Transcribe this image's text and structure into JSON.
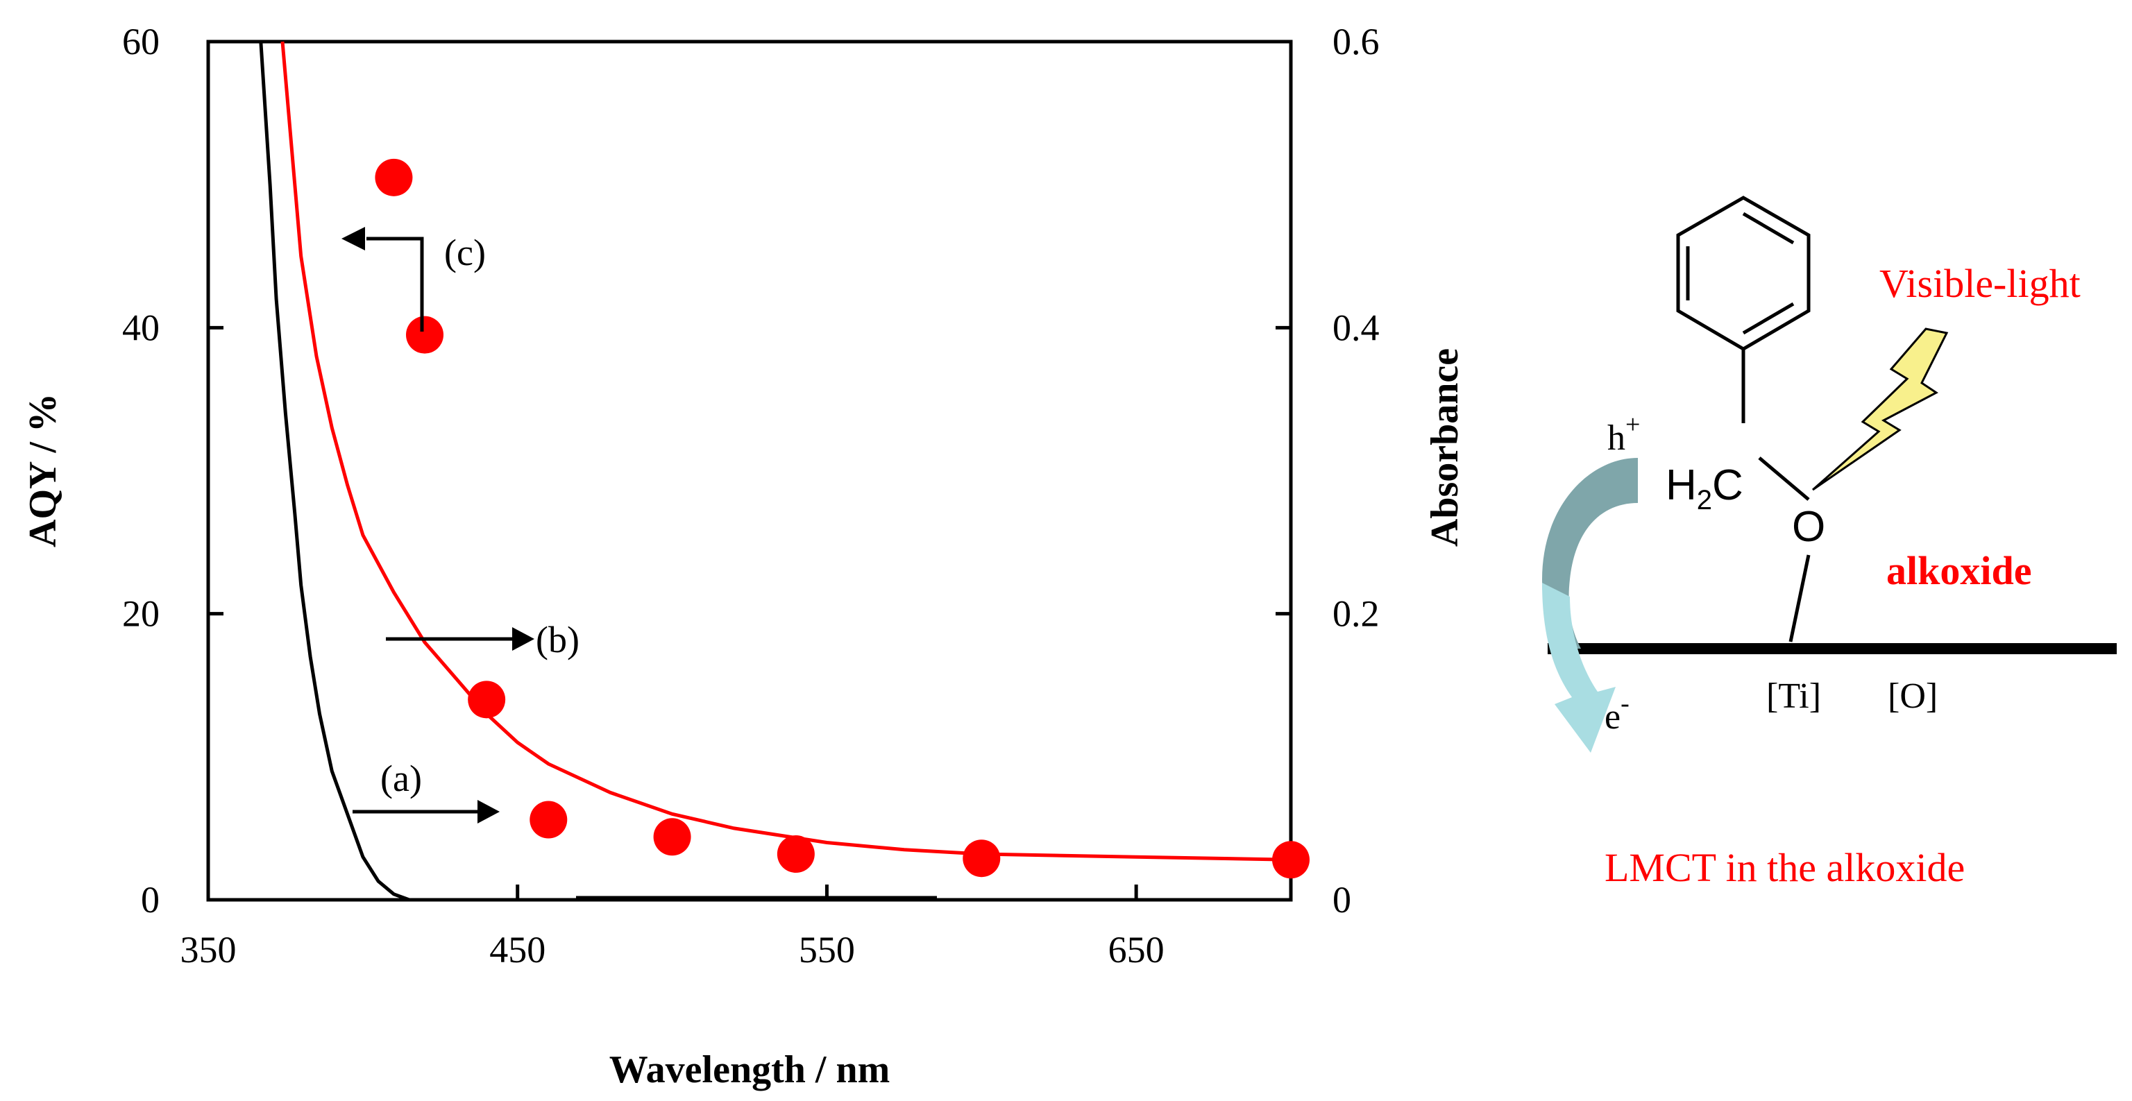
{
  "chart_data": {
    "type": "scatter",
    "xlabel": "Wavelength / nm",
    "ylabel_left": "AQY / %",
    "ylabel_right": "Absorbance",
    "xlim": [
      350,
      700
    ],
    "ylim_left": [
      0,
      60
    ],
    "ylim_right": [
      0,
      0.6
    ],
    "x_ticks": [
      350,
      450,
      550,
      650
    ],
    "y_left_ticks": [
      0,
      20,
      40,
      60
    ],
    "y_right_ticks": [
      "0",
      "0.2",
      "0.4",
      "0.6"
    ],
    "series": [
      {
        "name": "(a)",
        "axis": "right",
        "kind": "line",
        "color": "#000000",
        "x": [
          367,
          370,
          372,
          375,
          378,
          380,
          383,
          386,
          390,
          395,
          400,
          405,
          410,
          415
        ],
        "y": [
          0.6,
          0.5,
          0.42,
          0.34,
          0.27,
          0.22,
          0.17,
          0.13,
          0.09,
          0.06,
          0.03,
          0.013,
          0.004,
          0.0
        ]
      },
      {
        "name": "(b)",
        "axis": "right",
        "kind": "line",
        "color": "#ff0000",
        "x": [
          374,
          376,
          380,
          385,
          390,
          395,
          400,
          410,
          420,
          430,
          440,
          450,
          460,
          480,
          500,
          520,
          550,
          575,
          600,
          650,
          700
        ],
        "y": [
          0.6,
          0.55,
          0.45,
          0.38,
          0.33,
          0.29,
          0.255,
          0.215,
          0.18,
          0.155,
          0.13,
          0.11,
          0.095,
          0.075,
          0.06,
          0.05,
          0.04,
          0.035,
          0.032,
          0.03,
          0.028
        ]
      },
      {
        "name": "(c)",
        "axis": "left",
        "kind": "scatter",
        "color": "#ff0000",
        "x": [
          410,
          420,
          440,
          460,
          500,
          540,
          600,
          700
        ],
        "y": [
          50.5,
          39.5,
          14.0,
          5.6,
          4.4,
          3.2,
          2.9,
          2.8
        ]
      }
    ],
    "annotations": [
      "(a)",
      "(b)",
      "(c)"
    ]
  },
  "scheme": {
    "h_plus": "h",
    "h_plus_sup": "+",
    "e_minus": "e",
    "e_minus_sup": "-",
    "h2": "H",
    "h2_sub": "2",
    "c": "C",
    "o": "O",
    "ti_label": "[Ti]",
    "o_label": "[O]",
    "alkoxide": "alkoxide",
    "visible_light": "Visible-light",
    "lmct": "LMCT in the alkoxide"
  },
  "colors": {
    "red": "#ff0000",
    "lightning_fill": "#f8f08c",
    "arrow_hole": "#7fa6aa",
    "arrow_electron": "#a9dde2"
  }
}
